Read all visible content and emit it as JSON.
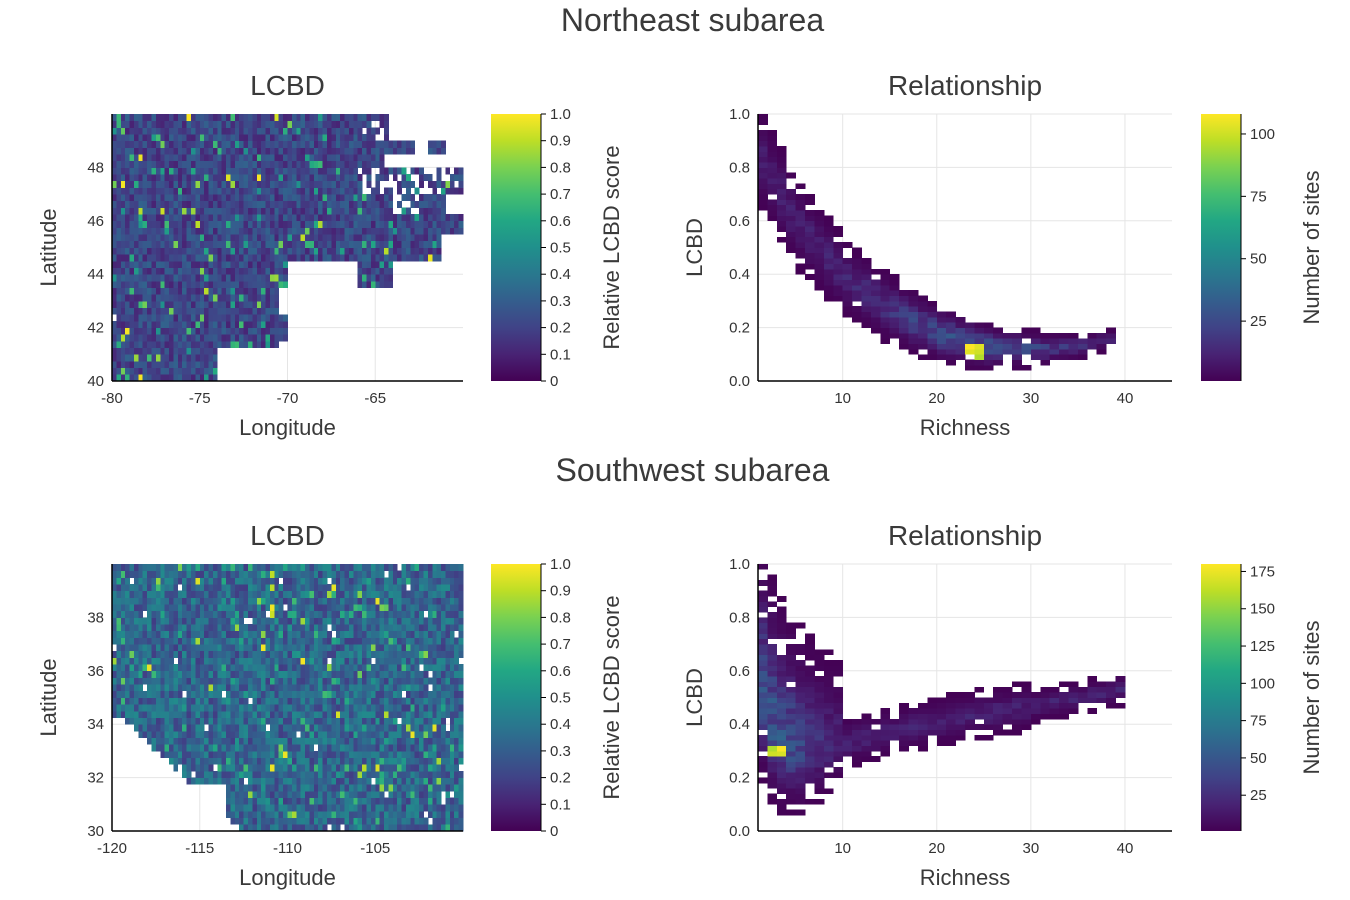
{
  "colors": {
    "colormap": "viridis",
    "grid": "#e5e5e5",
    "axis": "#000000"
  },
  "sections": [
    {
      "title": "Northeast subarea"
    },
    {
      "title": "Southwest subarea"
    }
  ],
  "chart_data": [
    {
      "id": "ne-lcbd",
      "type": "heatmap",
      "title": "LCBD",
      "xlabel": "Longitude",
      "ylabel": "Latitude",
      "xlim": [
        -80,
        -60
      ],
      "ylim": [
        40,
        50
      ],
      "xticks": [
        -80,
        -75,
        -70,
        -65
      ],
      "yticks": [
        40,
        42,
        44,
        46,
        48
      ],
      "grid": true,
      "colorbar": {
        "label": "Relative LCBD score",
        "range": [
          0,
          1
        ],
        "ticks": [
          "0",
          "0.1",
          "0.2",
          "0.3",
          "0.4",
          "0.5",
          "0.6",
          "0.7",
          "0.8",
          "0.9",
          "1.0"
        ]
      },
      "description_values": "grid of relative LCBD scores, mostly 0.1-0.35 with scattered highs up to 1.0; ocean cells empty"
    },
    {
      "id": "ne-rel",
      "type": "heatmap",
      "title": "Relationship",
      "xlabel": "Richness",
      "ylabel": "LCBD",
      "xlim": [
        1,
        45
      ],
      "ylim": [
        0,
        1
      ],
      "xticks": [
        10,
        20,
        30,
        40
      ],
      "yticks": [
        "0.0",
        "0.2",
        "0.4",
        "0.6",
        "0.8",
        "1.0"
      ],
      "grid": true,
      "colorbar": {
        "label": "Number of sites",
        "range": [
          1,
          108
        ],
        "ticks": [
          25,
          50,
          75,
          100
        ]
      },
      "trend": [
        {
          "x": 1,
          "y": 0.86
        },
        {
          "x": 5,
          "y": 0.6
        },
        {
          "x": 10,
          "y": 0.4
        },
        {
          "x": 15,
          "y": 0.27
        },
        {
          "x": 20,
          "y": 0.18
        },
        {
          "x": 25,
          "y": 0.13
        },
        {
          "x": 30,
          "y": 0.12
        },
        {
          "x": 35,
          "y": 0.13
        },
        {
          "x": 39,
          "y": 0.16
        }
      ],
      "peak": {
        "x": 24,
        "y": 0.11,
        "count": 108
      }
    },
    {
      "id": "sw-lcbd",
      "type": "heatmap",
      "title": "LCBD",
      "xlabel": "Longitude",
      "ylabel": "Latitude",
      "xlim": [
        -120,
        -100
      ],
      "ylim": [
        30,
        40
      ],
      "xticks": [
        -120,
        -115,
        -110,
        -105
      ],
      "yticks": [
        30,
        32,
        34,
        36,
        38
      ],
      "grid": true,
      "colorbar": {
        "label": "Relative LCBD score",
        "range": [
          0,
          1
        ],
        "ticks": [
          "0",
          "0.1",
          "0.2",
          "0.3",
          "0.4",
          "0.5",
          "0.6",
          "0.7",
          "0.8",
          "0.9",
          "1.0"
        ]
      },
      "description_values": "grid of relative LCBD scores, mostly 0.2-0.5 with scattered highs up to 1.0; ocean cells empty in lower-left"
    },
    {
      "id": "sw-rel",
      "type": "heatmap",
      "title": "Relationship",
      "xlabel": "Richness",
      "ylabel": "LCBD",
      "xlim": [
        1,
        45
      ],
      "ylim": [
        0,
        1
      ],
      "xticks": [
        10,
        20,
        30,
        40
      ],
      "yticks": [
        "0.0",
        "0.2",
        "0.4",
        "0.6",
        "0.8",
        "1.0"
      ],
      "grid": true,
      "colorbar": {
        "label": "Number of sites",
        "range": [
          1,
          180
        ],
        "ticks": [
          25,
          50,
          75,
          100,
          125,
          150,
          175
        ]
      },
      "trend": [
        {
          "x": 1,
          "y": 0.55
        },
        {
          "x": 3,
          "y": 0.35
        },
        {
          "x": 6,
          "y": 0.3
        },
        {
          "x": 10,
          "y": 0.33
        },
        {
          "x": 15,
          "y": 0.37
        },
        {
          "x": 20,
          "y": 0.41
        },
        {
          "x": 25,
          "y": 0.44
        },
        {
          "x": 30,
          "y": 0.47
        },
        {
          "x": 35,
          "y": 0.5
        },
        {
          "x": 40,
          "y": 0.53
        }
      ],
      "peak": {
        "x": 3,
        "y": 0.3,
        "count": 180
      }
    }
  ]
}
